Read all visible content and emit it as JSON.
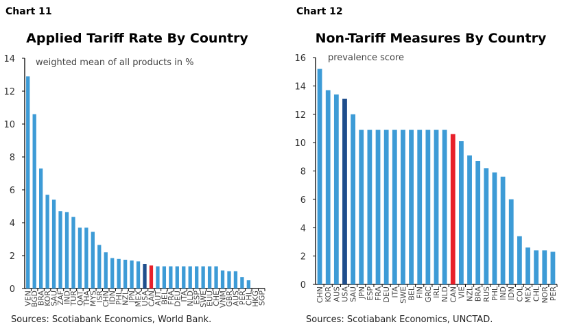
{
  "colors": {
    "bar": "#3d9bd6",
    "highlight_dark": "#1f4e8c",
    "highlight_red": "#e8202a",
    "axis": "#000000"
  },
  "chart_data": [
    {
      "type": "bar",
      "label": "Chart 11",
      "title": "Applied Tariff Rate By Country",
      "subtitle": "weighted mean of all products in %",
      "source": "Sources: Scotiabank Economics, World Bank.",
      "ylim": [
        0,
        14
      ],
      "yticks": [
        0,
        2,
        4,
        6,
        8,
        10,
        12,
        14
      ],
      "grid": false,
      "categories": [
        "VEN",
        "BGD",
        "BRA",
        "KOR",
        "SAU",
        "ZAF",
        "IND",
        "TUR",
        "QAT",
        "THA",
        "MYS",
        "ISR",
        "CHN",
        "IDN",
        "PHL",
        "NZL",
        "JPN",
        "MEX",
        "USA",
        "CAN",
        "AUT",
        "BEL",
        "FRA",
        "DEU",
        "ITA",
        "NLD",
        "ESP",
        "SWE",
        "EUU",
        "CHE",
        "VNM",
        "GBR",
        "AUS",
        "PER",
        "CHL",
        "HKG",
        "SGP"
      ],
      "values": [
        12.9,
        10.6,
        7.3,
        5.7,
        5.4,
        4.7,
        4.65,
        4.35,
        3.7,
        3.7,
        3.45,
        2.65,
        2.2,
        1.85,
        1.8,
        1.75,
        1.7,
        1.65,
        1.5,
        1.4,
        1.35,
        1.35,
        1.35,
        1.35,
        1.35,
        1.35,
        1.35,
        1.35,
        1.35,
        1.35,
        1.1,
        1.05,
        1.05,
        0.7,
        0.5,
        0,
        0
      ],
      "highlights": {
        "USA": "highlight_dark",
        "CAN": "highlight_red"
      }
    },
    {
      "type": "bar",
      "label": "Chart 12",
      "title": "Non-Tariff Measures By Country",
      "subtitle": "prevalence score",
      "source": "Sources: Scotiabank Economics, UNCTAD.",
      "ylim": [
        0,
        16
      ],
      "yticks": [
        0,
        2,
        4,
        6,
        8,
        10,
        12,
        14,
        16
      ],
      "grid": false,
      "categories": [
        "CHN",
        "KOR",
        "AUS",
        "USA",
        "SAU",
        "JPN",
        "ESP",
        "FRA",
        "DEU",
        "ITA",
        "SWE",
        "BEL",
        "FIN",
        "GRC",
        "IRL",
        "NLD",
        "CAN",
        "VIE",
        "NZL",
        "BRA",
        "RUS",
        "PHL",
        "IND",
        "IDN",
        "COL",
        "MEX",
        "CHL",
        "NOR",
        "PER"
      ],
      "values": [
        15.2,
        13.7,
        13.4,
        13.1,
        12.0,
        10.9,
        10.9,
        10.9,
        10.9,
        10.9,
        10.9,
        10.9,
        10.9,
        10.9,
        10.9,
        10.9,
        10.6,
        10.1,
        9.1,
        8.7,
        8.2,
        7.9,
        7.6,
        6.0,
        3.4,
        2.6,
        2.4,
        2.4,
        2.3
      ],
      "highlights": {
        "USA": "highlight_dark",
        "CAN": "highlight_red"
      }
    }
  ]
}
